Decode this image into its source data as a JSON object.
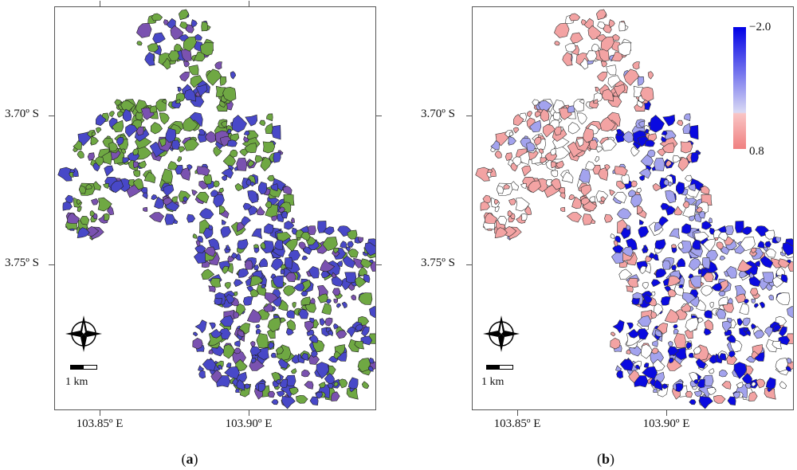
{
  "axes": {
    "y_labels": [
      "3.70º S",
      "3.75º S"
    ],
    "x_labels": [
      "103.85º E",
      "103.90º E"
    ]
  },
  "panels": [
    {
      "caption": "a",
      "scale_label": "1 km",
      "style": "rgb-composite"
    },
    {
      "caption": "b",
      "scale_label": "1 km",
      "style": "diverging-index",
      "legend": {
        "max_label": "−2.0",
        "min_label": "0.8",
        "colors": [
          "#0000e6",
          "#d9d9f4",
          "#f9c5c5",
          "#f08080"
        ]
      }
    }
  ],
  "colors": {
    "green": "#6fa843",
    "blue": "#4848c8",
    "purple": "#7a52b0",
    "deep_blue": "#0a0ae0",
    "light_blue": "#a3a3ee",
    "pink": "#f3a3a3",
    "outline": "#222222"
  },
  "icons": [
    "compass-rose-icon"
  ]
}
